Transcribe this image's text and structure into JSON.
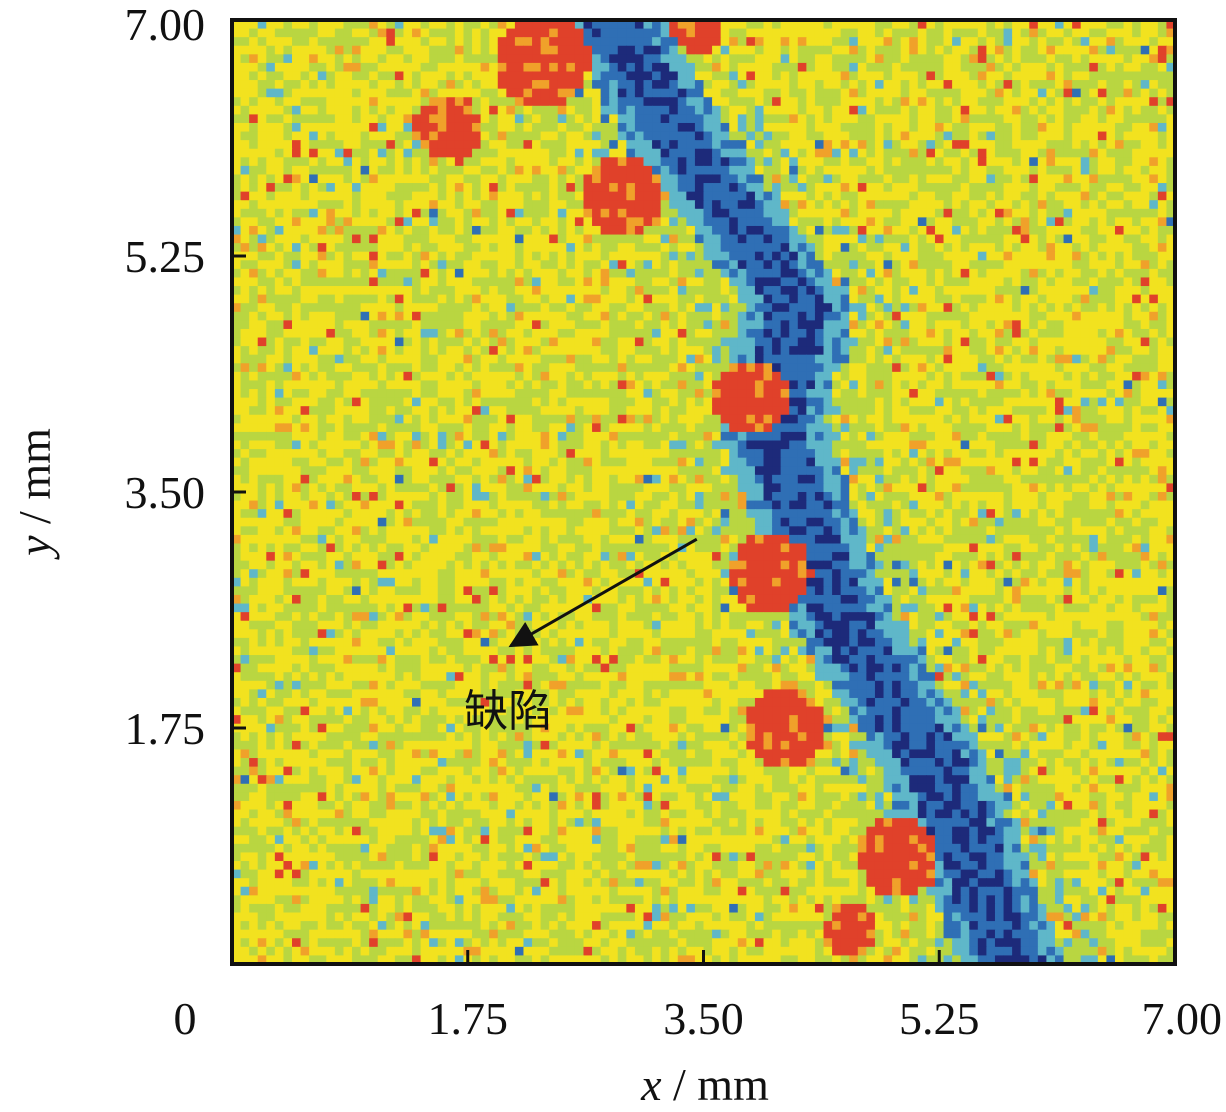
{
  "chart_data": {
    "type": "heatmap",
    "xlabel_var": "x",
    "xlabel_unit": " / mm",
    "ylabel_var": "y",
    "ylabel_unit": " / mm",
    "xlim": [
      0,
      7.0
    ],
    "ylim": [
      0,
      7.0
    ],
    "origin_label": "0",
    "x_ticks": [
      {
        "value": 1.75,
        "label": "1.75"
      },
      {
        "value": 3.5,
        "label": "3.50"
      },
      {
        "value": 5.25,
        "label": "5.25"
      },
      {
        "value": 7.0,
        "label": "7.00"
      }
    ],
    "y_ticks": [
      {
        "value": 1.75,
        "label": "1.75"
      },
      {
        "value": 3.5,
        "label": "3.50"
      },
      {
        "value": 5.25,
        "label": "5.25"
      },
      {
        "value": 7.0,
        "label": "7.00"
      }
    ],
    "colormap": [
      "#1d2a7a",
      "#2f6fb5",
      "#5fb7c9",
      "#b9d641",
      "#f2e21f",
      "#f0a12a",
      "#e0412a"
    ],
    "band": {
      "description_points": [
        {
          "x": 2.8,
          "y": 7.0
        },
        {
          "x": 3.4,
          "y": 6.0
        },
        {
          "x": 4.2,
          "y": 4.9
        },
        {
          "x": 4.0,
          "y": 4.0
        },
        {
          "x": 4.5,
          "y": 2.6
        },
        {
          "x": 5.2,
          "y": 1.5
        },
        {
          "x": 5.8,
          "y": 0.0
        }
      ]
    },
    "annotations": [
      {
        "text": "缺陷",
        "text_x": 2.05,
        "text_y": 1.95,
        "arrow_from": [
          3.45,
          3.15
        ],
        "arrow_to": [
          2.07,
          2.36
        ]
      }
    ]
  }
}
